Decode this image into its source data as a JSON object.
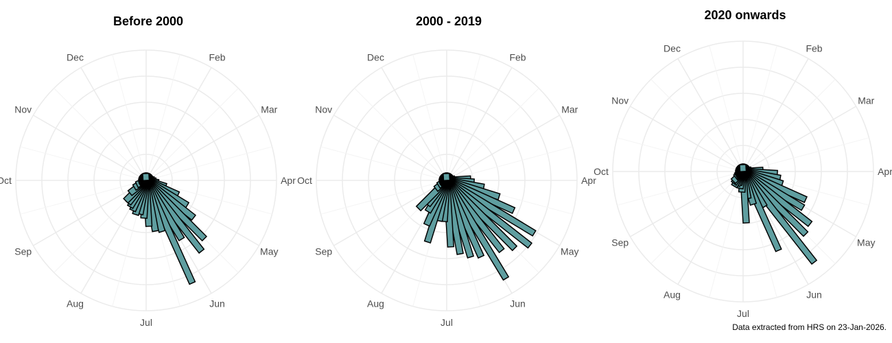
{
  "chart_data": [
    {
      "type": "bar",
      "coord": "polar",
      "title": "Before 2000",
      "bins": "weekly",
      "month_labels": [
        "Feb",
        "Mar",
        "Apr",
        "May",
        "Jun",
        "Jul",
        "Aug",
        "Sep",
        "Oct",
        "Nov",
        "Dec"
      ],
      "r_range": [
        0,
        190
      ],
      "grid": true,
      "fill": "#5f9ea0",
      "values": [
        10,
        10,
        10,
        10,
        10,
        10,
        10,
        10,
        10,
        10,
        10,
        10,
        12,
        14,
        18,
        30,
        51,
        70,
        88,
        120,
        131,
        100,
        164,
        78,
        75,
        67,
        55,
        50,
        52,
        48,
        45,
        42,
        42,
        30,
        20,
        15,
        10,
        10,
        10,
        10,
        10,
        10,
        10,
        10,
        10,
        10,
        10,
        10,
        10,
        10,
        10,
        10
      ]
    },
    {
      "type": "bar",
      "coord": "polar",
      "title": "2000 - 2019",
      "bins": "weekly",
      "month_labels": [
        "Feb",
        "Mar",
        "Apr",
        "May",
        "Jun",
        "Jul",
        "Aug",
        "Sep",
        "Oct",
        "Nov",
        "Dec"
      ],
      "r_range": [
        0,
        190
      ],
      "grid": true,
      "fill": "#5f9ea0",
      "values": [
        10,
        10,
        10,
        10,
        10,
        10,
        10,
        10,
        10,
        10,
        10,
        12,
        35,
        40,
        55,
        80,
        107,
        149,
        154,
        140,
        130,
        167,
        122,
        117,
        109,
        97,
        60,
        60,
        94,
        71,
        53,
        45,
        58,
        20,
        14,
        10,
        10,
        10,
        10,
        10,
        10,
        10,
        10,
        10,
        10,
        10,
        10,
        10,
        10,
        10,
        10,
        10
      ]
    },
    {
      "type": "bar",
      "coord": "polar",
      "title": "2020 onwards",
      "bins": "weekly",
      "month_labels": [
        "Feb",
        "Mar",
        "Apr",
        "May",
        "Jun",
        "Jul",
        "Aug",
        "Sep",
        "Oct",
        "Nov",
        "Dec"
      ],
      "r_range": [
        0,
        190
      ],
      "grid": true,
      "fill": "#5f9ea0",
      "values": [
        10,
        10,
        10,
        10,
        10,
        10,
        10,
        10,
        10,
        10,
        10,
        12,
        29,
        50,
        55,
        60,
        100,
        102,
        124,
        129,
        168,
        60,
        126,
        50,
        40,
        75,
        30,
        25,
        20,
        22,
        25,
        22,
        20,
        14,
        12,
        10,
        10,
        10,
        10,
        10,
        10,
        10,
        10,
        10,
        10,
        10,
        10,
        10,
        10,
        10,
        10,
        10
      ]
    }
  ],
  "caption": "Data extracted from HRS on 23-Jan-2026."
}
